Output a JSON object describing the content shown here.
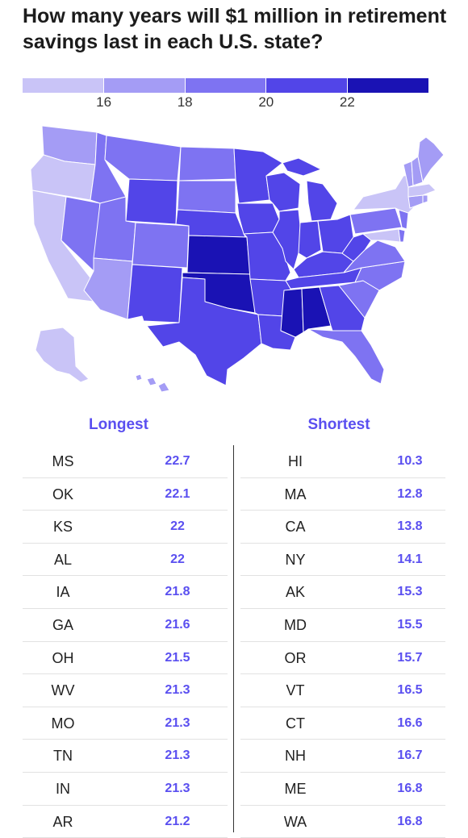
{
  "title": "How many years will $1 million in retirement savings last in each U.S. state?",
  "legend": {
    "colors": [
      "#c9c4f7",
      "#a49cf5",
      "#7e73f2",
      "#5245e8",
      "#1a12b4"
    ],
    "ticks": [
      "16",
      "18",
      "20",
      "22"
    ]
  },
  "map_colors": {
    "lightest": "#c9c4f7",
    "light": "#a49cf5",
    "mid": "#7e73f2",
    "dark": "#5245e8",
    "darkest": "#1a12b4"
  },
  "table": {
    "longest_header": "Longest",
    "shortest_header": "Shortest",
    "longest": [
      {
        "state": "MS",
        "years": "22.7"
      },
      {
        "state": "OK",
        "years": "22.1"
      },
      {
        "state": "KS",
        "years": "22"
      },
      {
        "state": "AL",
        "years": "22"
      },
      {
        "state": "IA",
        "years": "21.8"
      },
      {
        "state": "GA",
        "years": "21.6"
      },
      {
        "state": "OH",
        "years": "21.5"
      },
      {
        "state": "WV",
        "years": "21.3"
      },
      {
        "state": "MO",
        "years": "21.3"
      },
      {
        "state": "TN",
        "years": "21.3"
      },
      {
        "state": "IN",
        "years": "21.3"
      },
      {
        "state": "AR",
        "years": "21.2"
      }
    ],
    "shortest": [
      {
        "state": "HI",
        "years": "10.3"
      },
      {
        "state": "MA",
        "years": "12.8"
      },
      {
        "state": "CA",
        "years": "13.8"
      },
      {
        "state": "NY",
        "years": "14.1"
      },
      {
        "state": "AK",
        "years": "15.3"
      },
      {
        "state": "MD",
        "years": "15.5"
      },
      {
        "state": "OR",
        "years": "15.7"
      },
      {
        "state": "VT",
        "years": "16.5"
      },
      {
        "state": "CT",
        "years": "16.6"
      },
      {
        "state": "NH",
        "years": "16.7"
      },
      {
        "state": "ME",
        "years": "16.8"
      },
      {
        "state": "WA",
        "years": "16.8"
      }
    ]
  }
}
